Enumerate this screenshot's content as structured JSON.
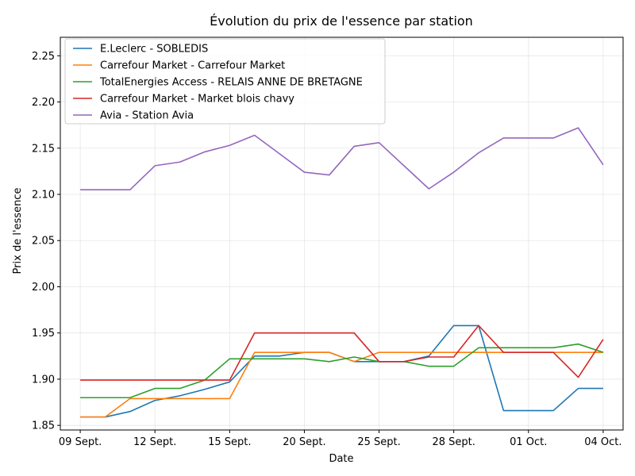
{
  "chart_data": {
    "type": "line",
    "title": "Évolution du prix de l'essence par station",
    "xlabel": "Date",
    "ylabel": "Prix de l'essence",
    "x_ticks": [
      {
        "day": 0,
        "label": "09 Sept."
      },
      {
        "day": 3,
        "label": "12 Sept."
      },
      {
        "day": 6,
        "label": "15 Sept."
      },
      {
        "day": 9,
        "label": "20 Sept."
      },
      {
        "day": 12,
        "label": "25 Sept."
      },
      {
        "day": 15,
        "label": "28 Sept."
      },
      {
        "day": 18,
        "label": "01 Oct."
      },
      {
        "day": 21,
        "label": "04 Oct."
      }
    ],
    "y_ticks": [
      "1.85",
      "1.90",
      "1.95",
      "2.00",
      "2.05",
      "2.10",
      "2.15",
      "2.20",
      "2.25"
    ],
    "ylim": [
      1.845,
      2.27
    ],
    "xlim": [
      -0.8,
      21.8
    ],
    "grid": true,
    "legend_position": "top-left",
    "x": [
      0,
      1,
      2,
      3,
      4,
      5,
      6,
      7,
      8,
      9,
      10,
      11,
      12,
      13,
      14,
      15,
      16,
      17,
      18,
      19,
      20,
      21
    ],
    "series": [
      {
        "name": "E.Leclerc - SOBLEDIS",
        "color": "#1f77b4",
        "values": [
          1.859,
          1.859,
          1.865,
          1.877,
          1.882,
          1.889,
          1.897,
          1.925,
          1.925,
          1.929,
          1.929,
          1.919,
          1.919,
          1.919,
          1.925,
          1.958,
          1.958,
          1.866,
          1.866,
          1.866,
          1.89,
          1.89
        ]
      },
      {
        "name": "Carrefour Market - Carrefour Market",
        "color": "#ff7f0e",
        "values": [
          1.859,
          1.859,
          1.879,
          1.879,
          1.879,
          1.879,
          1.879,
          1.929,
          1.929,
          1.929,
          1.929,
          1.919,
          1.929,
          1.929,
          1.929,
          1.929,
          1.929,
          1.929,
          1.929,
          1.929,
          1.929,
          1.929
        ]
      },
      {
        "name": "TotalEnergies Access - RELAIS ANNE DE BRETAGNE",
        "color": "#2ca02c",
        "values": [
          1.88,
          1.88,
          1.88,
          1.89,
          1.89,
          1.899,
          1.922,
          1.922,
          1.922,
          1.922,
          1.919,
          1.924,
          1.919,
          1.919,
          1.914,
          1.914,
          1.934,
          1.934,
          1.934,
          1.934,
          1.938,
          1.929
        ]
      },
      {
        "name": "Carrefour Market - Market blois chavy",
        "color": "#d62728",
        "values": [
          1.899,
          1.899,
          1.899,
          1.899,
          1.899,
          1.899,
          1.899,
          1.95,
          1.95,
          1.95,
          1.95,
          1.95,
          1.919,
          1.919,
          1.924,
          1.924,
          1.958,
          1.929,
          1.929,
          1.929,
          1.902,
          1.943
        ]
      },
      {
        "name": "Avia - Station Avia",
        "color": "#9467bd",
        "values": [
          2.105,
          2.105,
          2.105,
          2.131,
          2.135,
          2.146,
          2.153,
          2.164,
          2.144,
          2.124,
          2.121,
          2.152,
          2.156,
          2.131,
          2.106,
          2.124,
          2.145,
          2.161,
          2.161,
          2.161,
          2.172,
          2.132
        ]
      }
    ]
  }
}
